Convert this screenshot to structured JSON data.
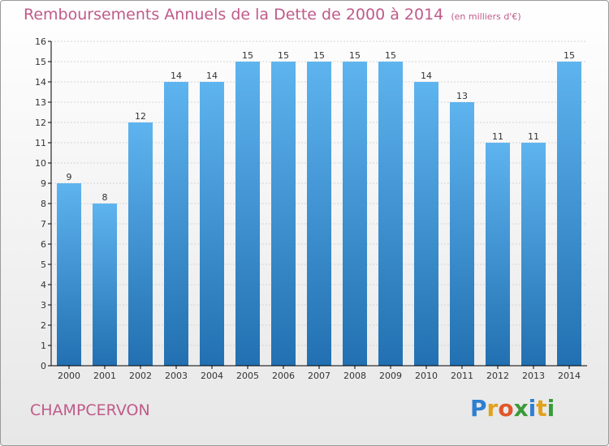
{
  "title": "Remboursements Annuels de la Dette de 2000 à 2014",
  "unit": "(en milliers d'€)",
  "commune": "CHAMPCERVON",
  "logo": {
    "letters": [
      "P",
      "r",
      "o",
      "x",
      "i",
      "t",
      "i"
    ],
    "colors": [
      "#2e7fd0",
      "#e2a21b",
      "#e0562a",
      "#3a9a3a",
      "#2e7fd0",
      "#e2a21b",
      "#3a9a3a"
    ]
  },
  "colors": {
    "bar_light": "#5eb4ef",
    "bar_dark": "#2270b1",
    "title": "#c05a89",
    "axis": "#000000",
    "grid": "#d4d4d4",
    "text": "#333333"
  },
  "chart_data": {
    "type": "bar",
    "categories": [
      "2000",
      "2001",
      "2002",
      "2003",
      "2004",
      "2005",
      "2006",
      "2007",
      "2008",
      "2009",
      "2010",
      "2011",
      "2012",
      "2013",
      "2014"
    ],
    "values": [
      9,
      8,
      12,
      14,
      14,
      15,
      15,
      15,
      15,
      15,
      14,
      13,
      11,
      11,
      15
    ],
    "yticks": [
      0,
      1,
      2,
      3,
      4,
      5,
      6,
      7,
      8,
      9,
      10,
      11,
      12,
      13,
      14,
      15,
      16
    ],
    "ylim": [
      0,
      16
    ],
    "grid": true,
    "legend": "none"
  }
}
